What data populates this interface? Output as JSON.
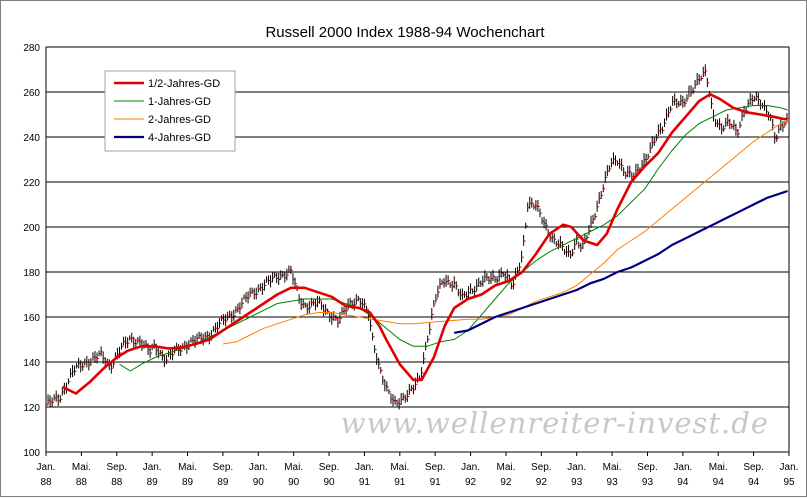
{
  "chart_data": {
    "type": "line",
    "title": "Russell 2000 Index 1988-94 Wochenchart",
    "watermark": "www.wellenreiter-invest.de",
    "xlabel": "",
    "ylabel": "",
    "ylim": [
      100,
      280
    ],
    "y_ticks": [
      "100",
      "120",
      "140",
      "160",
      "180",
      "200",
      "220",
      "240",
      "260",
      "280"
    ],
    "x_ticks": [
      {
        "m": "Jan.",
        "y": "88"
      },
      {
        "m": "Mai.",
        "y": "88"
      },
      {
        "m": "Sep.",
        "y": "88"
      },
      {
        "m": "Jan.",
        "y": "89"
      },
      {
        "m": "Mai.",
        "y": "89"
      },
      {
        "m": "Sep.",
        "y": "89"
      },
      {
        "m": "Jan.",
        "y": "90"
      },
      {
        "m": "Mai.",
        "y": "90"
      },
      {
        "m": "Sep.",
        "y": "90"
      },
      {
        "m": "Jan.",
        "y": "91"
      },
      {
        "m": "Mai.",
        "y": "91"
      },
      {
        "m": "Sep.",
        "y": "91"
      },
      {
        "m": "Jan.",
        "y": "92"
      },
      {
        "m": "Mai.",
        "y": "92"
      },
      {
        "m": "Sep.",
        "y": "92"
      },
      {
        "m": "Jan.",
        "y": "93"
      },
      {
        "m": "Mai.",
        "y": "93"
      },
      {
        "m": "Sep.",
        "y": "93"
      },
      {
        "m": "Jan.",
        "y": "94"
      },
      {
        "m": "Mai.",
        "y": "94"
      },
      {
        "m": "Sep.",
        "y": "94"
      },
      {
        "m": "Jan.",
        "y": "95"
      }
    ],
    "grid": true,
    "legend_position": "top-left",
    "price": {
      "style": "bars",
      "color": "#000000",
      "close_color": "#d40000",
      "anchors": [
        [
          0,
          121
        ],
        [
          1,
          124
        ],
        [
          2,
          136
        ],
        [
          3,
          140
        ],
        [
          4,
          143
        ],
        [
          4.7,
          138
        ],
        [
          5.5,
          146
        ],
        [
          6.2,
          150
        ],
        [
          7,
          149
        ],
        [
          7.6,
          144
        ],
        [
          8,
          147
        ],
        [
          8.8,
          141
        ],
        [
          9.6,
          145
        ],
        [
          10.4,
          148
        ],
        [
          11.3,
          150
        ],
        [
          12,
          152
        ],
        [
          13,
          158
        ],
        [
          14,
          163
        ],
        [
          15,
          170
        ],
        [
          16,
          174
        ],
        [
          17,
          178
        ],
        [
          18,
          180
        ],
        [
          18.6,
          168
        ],
        [
          19,
          165
        ],
        [
          20,
          166
        ],
        [
          20.7,
          162
        ],
        [
          21.5,
          158
        ],
        [
          22.3,
          166
        ],
        [
          23,
          168
        ],
        [
          23.7,
          161
        ],
        [
          24,
          150
        ],
        [
          24.5,
          138
        ],
        [
          25,
          128
        ],
        [
          25.6,
          121
        ],
        [
          26.2,
          124
        ],
        [
          27,
          128
        ],
        [
          27.5,
          133
        ],
        [
          28,
          150
        ],
        [
          28.6,
          168
        ],
        [
          29.2,
          176
        ],
        [
          30,
          175
        ],
        [
          30.6,
          168
        ],
        [
          31.3,
          172
        ],
        [
          32,
          176
        ],
        [
          33,
          177
        ],
        [
          33.6,
          180
        ],
        [
          34.3,
          173
        ],
        [
          35,
          188
        ],
        [
          35.4,
          210
        ],
        [
          36,
          209
        ],
        [
          36.6,
          202
        ],
        [
          37.3,
          194
        ],
        [
          38,
          190
        ],
        [
          38.5,
          188
        ],
        [
          39,
          194
        ],
        [
          39.4,
          190
        ],
        [
          40,
          200
        ],
        [
          40.8,
          215
        ],
        [
          41.5,
          228
        ],
        [
          42,
          230
        ],
        [
          42.6,
          224
        ],
        [
          43.2,
          222
        ],
        [
          44,
          230
        ],
        [
          44.7,
          238
        ],
        [
          45.3,
          244
        ],
        [
          46,
          256
        ],
        [
          46.8,
          254
        ],
        [
          47.5,
          262
        ],
        [
          48,
          266
        ],
        [
          48.5,
          268
        ],
        [
          49,
          250
        ],
        [
          49.6,
          244
        ],
        [
          50.2,
          246
        ],
        [
          50.8,
          242
        ],
        [
          51.3,
          252
        ],
        [
          52,
          257
        ],
        [
          52.6,
          255
        ],
        [
          53.2,
          250
        ],
        [
          53.6,
          238
        ],
        [
          54,
          244
        ],
        [
          54.5,
          248
        ]
      ]
    },
    "series": [
      {
        "name": "1/2-Jahres-GD",
        "color": "#e00000",
        "width": 2.6,
        "values": [
          [
            1.2,
            129
          ],
          [
            2.2,
            126
          ],
          [
            3.2,
            131
          ],
          [
            4.2,
            137
          ],
          [
            5.2,
            142
          ],
          [
            6,
            145
          ],
          [
            7,
            147
          ],
          [
            8,
            147
          ],
          [
            9,
            146
          ],
          [
            10,
            146.5
          ],
          [
            11,
            148
          ],
          [
            12,
            150
          ],
          [
            13,
            154
          ],
          [
            14,
            158
          ],
          [
            15,
            162
          ],
          [
            16,
            166
          ],
          [
            17,
            170
          ],
          [
            18,
            173
          ],
          [
            19,
            173
          ],
          [
            20,
            171
          ],
          [
            21,
            169
          ],
          [
            22,
            165
          ],
          [
            23,
            164
          ],
          [
            23.8,
            162
          ],
          [
            24.5,
            156
          ],
          [
            25,
            150
          ],
          [
            26,
            139
          ],
          [
            27,
            132
          ],
          [
            27.6,
            132
          ],
          [
            28.5,
            142
          ],
          [
            29.3,
            156
          ],
          [
            30,
            164
          ],
          [
            31,
            168
          ],
          [
            32,
            170
          ],
          [
            33,
            174
          ],
          [
            34,
            176
          ],
          [
            35,
            180
          ],
          [
            36,
            188
          ],
          [
            37,
            197
          ],
          [
            38,
            201
          ],
          [
            38.6,
            200
          ],
          [
            39.5,
            194
          ],
          [
            40.5,
            192
          ],
          [
            41.2,
            197
          ],
          [
            42,
            208
          ],
          [
            43,
            220
          ],
          [
            44,
            227
          ],
          [
            45,
            233
          ],
          [
            46,
            242
          ],
          [
            47,
            249
          ],
          [
            48,
            256
          ],
          [
            48.8,
            259
          ],
          [
            49.5,
            257
          ],
          [
            50.5,
            253
          ],
          [
            51.5,
            251
          ],
          [
            52.5,
            250
          ],
          [
            53.5,
            249
          ],
          [
            54.2,
            248
          ],
          [
            54.5,
            248
          ]
        ]
      },
      {
        "name": "1-Jahres-GD",
        "color": "#008000",
        "width": 1,
        "values": [
          [
            5.4,
            139
          ],
          [
            6.2,
            136
          ],
          [
            7,
            139
          ],
          [
            8,
            142
          ],
          [
            9,
            144
          ],
          [
            10,
            146
          ],
          [
            11,
            148
          ],
          [
            12,
            151
          ],
          [
            13,
            154
          ],
          [
            14,
            157
          ],
          [
            15,
            160
          ],
          [
            16,
            163
          ],
          [
            17,
            166
          ],
          [
            18,
            167
          ],
          [
            19,
            168
          ],
          [
            20,
            168
          ],
          [
            21,
            168
          ],
          [
            22,
            166
          ],
          [
            23,
            164
          ],
          [
            24,
            160
          ],
          [
            25,
            155
          ],
          [
            26,
            150
          ],
          [
            27,
            147
          ],
          [
            28,
            147
          ],
          [
            29,
            149
          ],
          [
            30,
            150
          ],
          [
            31,
            154
          ],
          [
            32,
            161
          ],
          [
            33,
            168
          ],
          [
            34,
            175
          ],
          [
            35,
            180
          ],
          [
            36,
            185
          ],
          [
            37,
            189
          ],
          [
            38,
            192
          ],
          [
            39,
            195
          ],
          [
            40,
            198
          ],
          [
            41,
            201
          ],
          [
            42,
            205
          ],
          [
            43,
            211
          ],
          [
            44,
            217
          ],
          [
            45,
            226
          ],
          [
            46,
            234
          ],
          [
            47,
            241
          ],
          [
            48,
            246
          ],
          [
            49,
            249
          ],
          [
            50,
            252
          ],
          [
            51,
            253
          ],
          [
            52,
            254
          ],
          [
            53,
            254
          ],
          [
            54,
            253
          ],
          [
            54.5,
            252
          ]
        ]
      },
      {
        "name": "2-Jahres-GD",
        "color": "#ff7f00",
        "width": 1,
        "values": [
          [
            13,
            148
          ],
          [
            14,
            149
          ],
          [
            15,
            152
          ],
          [
            16,
            155
          ],
          [
            17,
            157
          ],
          [
            18,
            159
          ],
          [
            19,
            161
          ],
          [
            20,
            162
          ],
          [
            21,
            162
          ],
          [
            22,
            161
          ],
          [
            23,
            160
          ],
          [
            24,
            159
          ],
          [
            25,
            158
          ],
          [
            26,
            157
          ],
          [
            27,
            157
          ],
          [
            28,
            157.5
          ],
          [
            29,
            158
          ],
          [
            30,
            158.5
          ],
          [
            31,
            159
          ],
          [
            32,
            159
          ],
          [
            33,
            160
          ],
          [
            34,
            161
          ],
          [
            35,
            164
          ],
          [
            36,
            167
          ],
          [
            37,
            169
          ],
          [
            38,
            171
          ],
          [
            39,
            174
          ],
          [
            40,
            179
          ],
          [
            41,
            184
          ],
          [
            42,
            190
          ],
          [
            43,
            194
          ],
          [
            44,
            198
          ],
          [
            45,
            203
          ],
          [
            46,
            208
          ],
          [
            47,
            213
          ],
          [
            48,
            218
          ],
          [
            49,
            223
          ],
          [
            50,
            228
          ],
          [
            51,
            233
          ],
          [
            52,
            238
          ],
          [
            53,
            242
          ],
          [
            54,
            246
          ],
          [
            54.5,
            247
          ]
        ]
      },
      {
        "name": "4-Jahres-GD",
        "color": "#00007f",
        "width": 2.2,
        "values": [
          [
            30,
            153
          ],
          [
            31,
            154
          ],
          [
            32,
            157
          ],
          [
            33,
            160
          ],
          [
            34,
            162
          ],
          [
            35,
            164
          ],
          [
            36,
            166
          ],
          [
            37,
            168
          ],
          [
            38,
            170
          ],
          [
            39,
            172
          ],
          [
            40,
            175
          ],
          [
            41,
            177
          ],
          [
            42,
            180
          ],
          [
            43,
            182
          ],
          [
            44,
            185
          ],
          [
            45,
            188
          ],
          [
            46,
            192
          ],
          [
            47,
            195
          ],
          [
            48,
            198
          ],
          [
            49,
            201
          ],
          [
            50,
            204
          ],
          [
            51,
            207
          ],
          [
            52,
            210
          ],
          [
            53,
            213
          ],
          [
            54,
            215
          ],
          [
            54.5,
            216
          ]
        ]
      }
    ]
  }
}
